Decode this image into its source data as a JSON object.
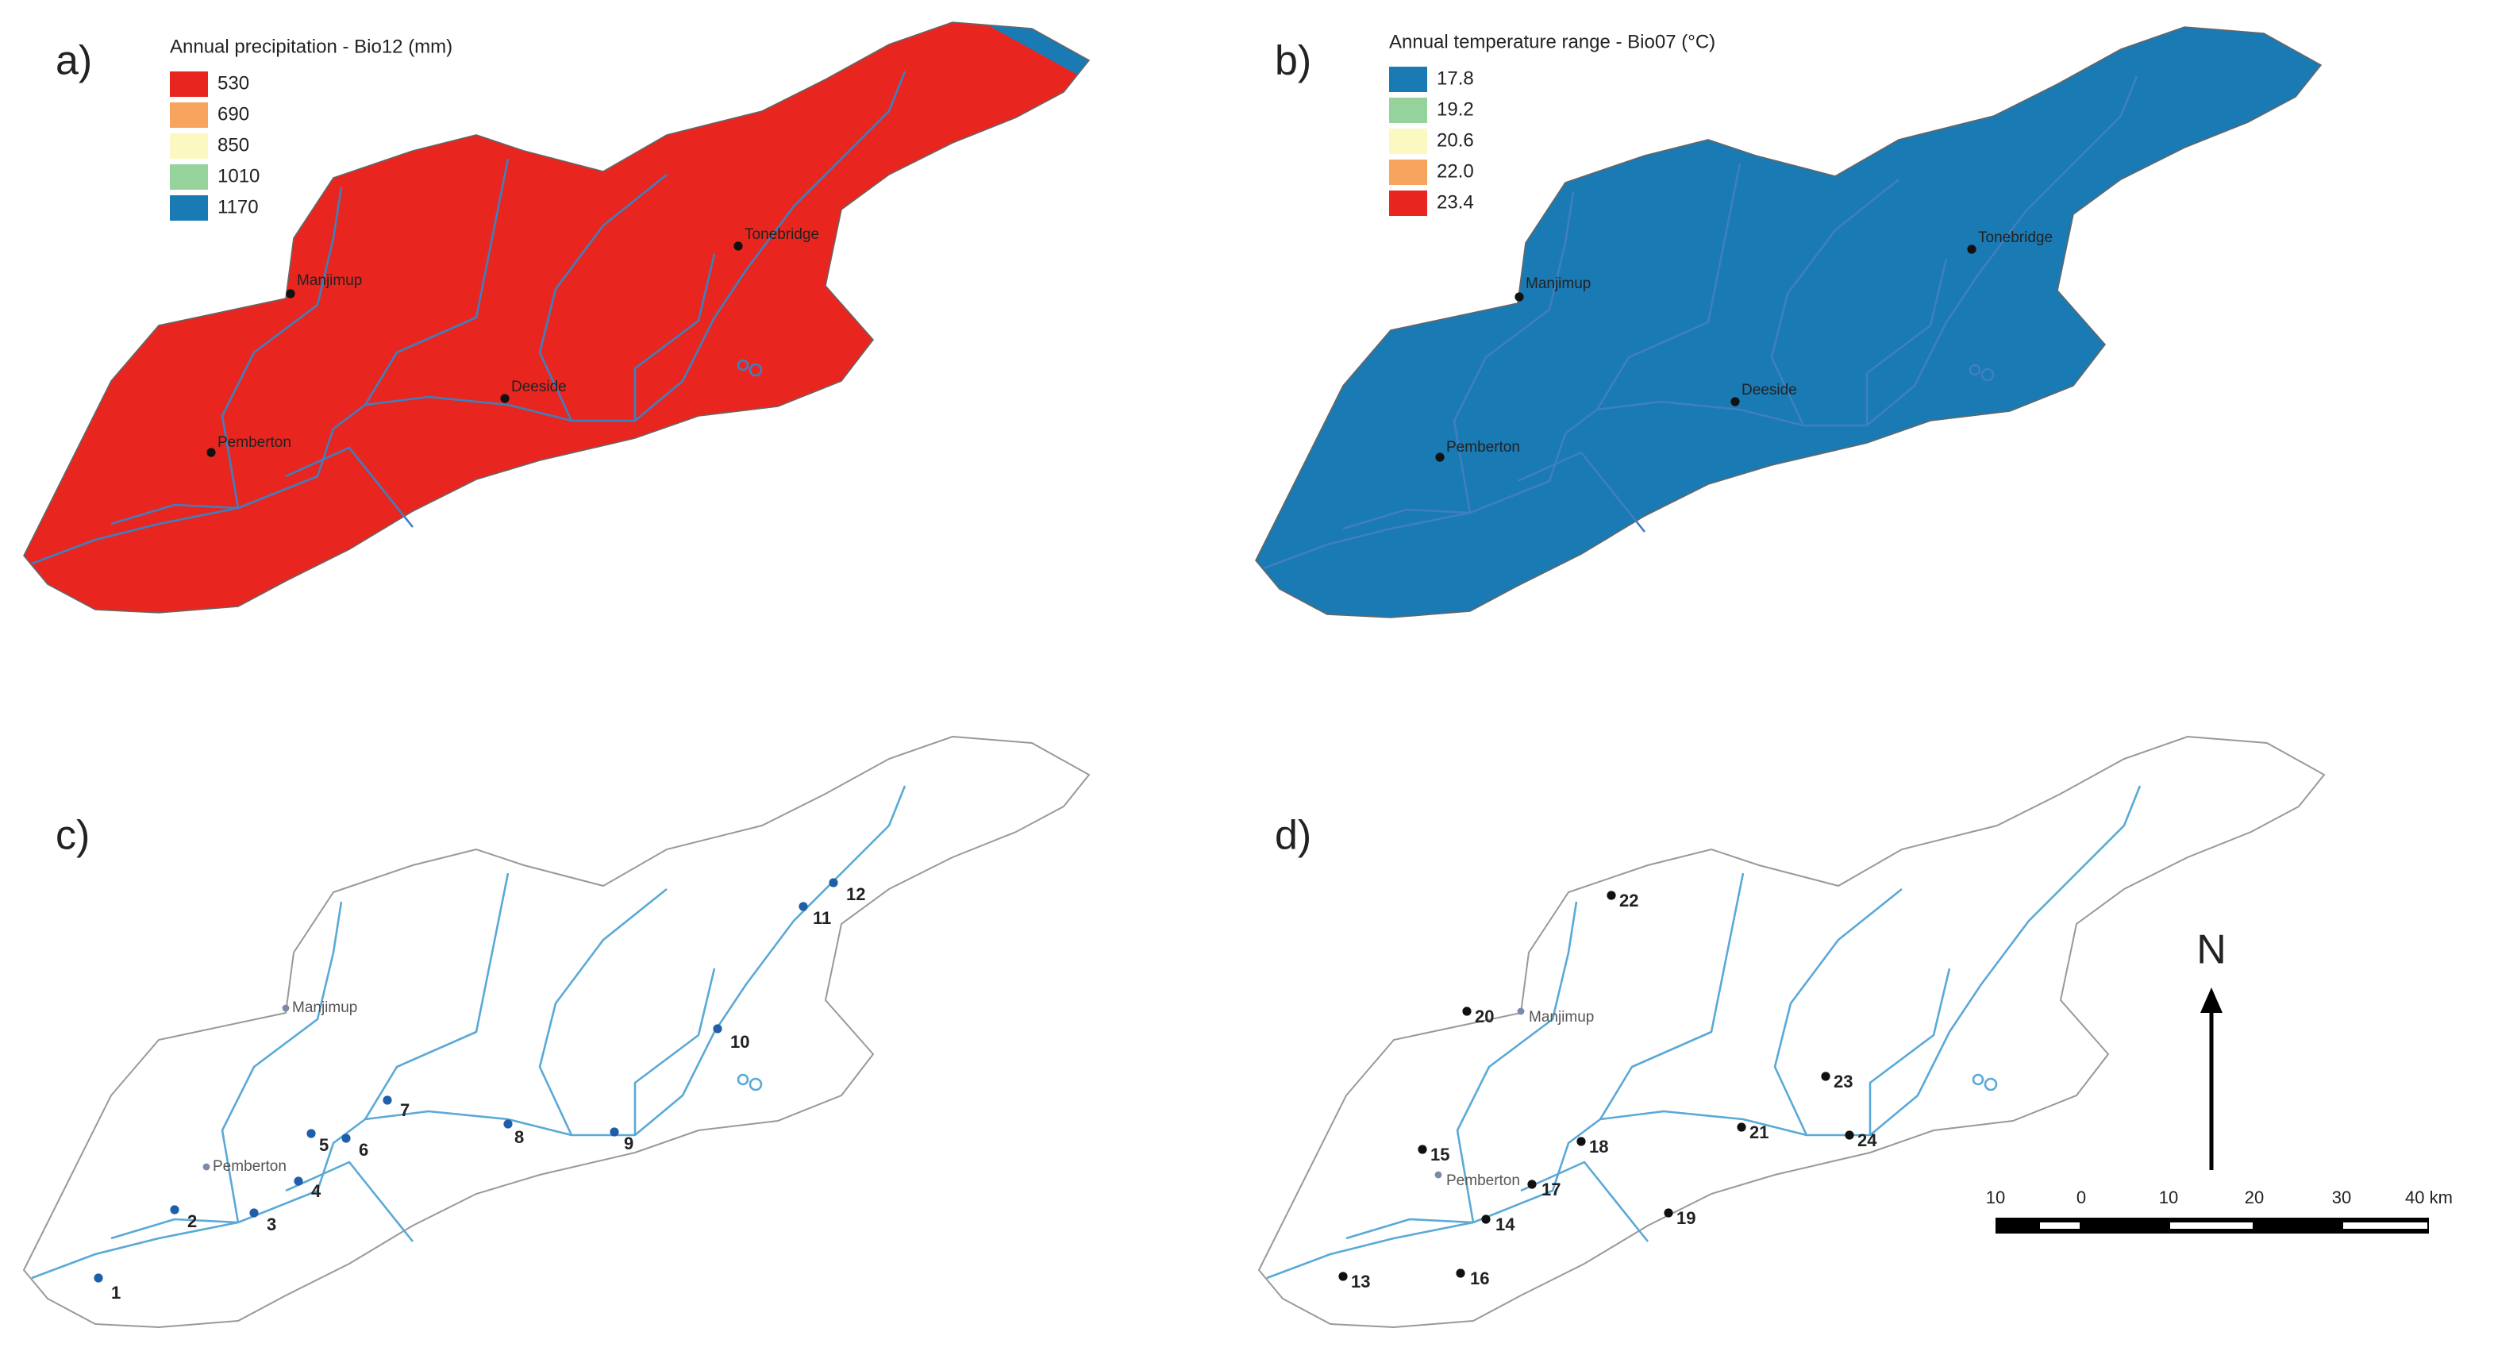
{
  "panels": [
    {
      "label": "a)",
      "legend": {
        "title": "Annual precipitation - Bio12 (mm)",
        "items": [
          {
            "label": "530",
            "color": "#e8261f"
          },
          {
            "label": "690",
            "color": "#f6a45e"
          },
          {
            "label": "850",
            "color": "#fbf8c2"
          },
          {
            "label": "1010",
            "color": "#96d39c"
          },
          {
            "label": "1170",
            "color": "#1a7ab3"
          }
        ]
      },
      "towns": [
        "Manjimup",
        "Tonebridge",
        "Deeside",
        "Pemberton"
      ]
    },
    {
      "label": "b)",
      "legend": {
        "title": "Annual temperature range - Bio07 (°C)",
        "items": [
          {
            "label": "17.8",
            "color": "#1a7ab3"
          },
          {
            "label": "19.2",
            "color": "#96d39c"
          },
          {
            "label": "20.6",
            "color": "#fbf8c2"
          },
          {
            "label": "22.0",
            "color": "#f6a45e"
          },
          {
            "label": "23.4",
            "color": "#e8261f"
          }
        ]
      },
      "towns": [
        "Manjimup",
        "Tonebridge",
        "Deeside",
        "Pemberton"
      ]
    },
    {
      "label": "c)",
      "towns": [
        "Manjimup",
        "Pemberton"
      ],
      "sites": [
        "1",
        "2",
        "3",
        "4",
        "5",
        "6",
        "7",
        "8",
        "9",
        "10",
        "11",
        "12"
      ]
    },
    {
      "label": "d)",
      "towns": [
        "Manjimup",
        "Pemberton"
      ],
      "sites": [
        "13",
        "14",
        "15",
        "16",
        "17",
        "18",
        "19",
        "20",
        "21",
        "22",
        "23",
        "24"
      ]
    }
  ],
  "scale_bar": {
    "labels": [
      "10",
      "0",
      "10",
      "20",
      "30",
      "40 km"
    ]
  },
  "north": "N"
}
